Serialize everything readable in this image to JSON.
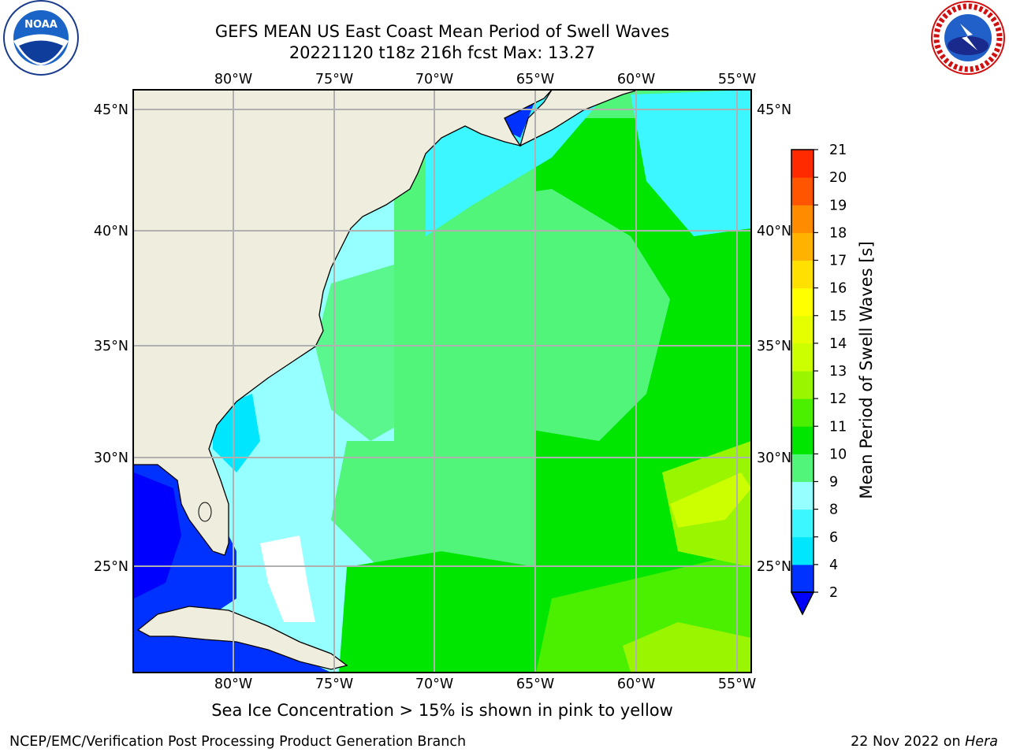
{
  "title": {
    "line1": "GEFS MEAN US East Coast Mean Period of Swell Waves",
    "line2": "20221120 t18z 216h fcst   Max: 13.27"
  },
  "map": {
    "lon_labels": [
      "80°W",
      "75°W",
      "70°W",
      "65°W",
      "60°W",
      "55°W"
    ],
    "lat_labels": [
      "45°N",
      "40°N",
      "35°N",
      "30°N",
      "25°N"
    ],
    "colors": {
      "land": "#efedde",
      "grid": "#b0b0b0",
      "ice_free_white": "#ffffff"
    }
  },
  "colorbar": {
    "label": "Mean Period of Swell Waves [s]",
    "ticks": [
      "2",
      "4",
      "6",
      "8",
      "9",
      "10",
      "11",
      "12",
      "13",
      "14",
      "15",
      "16",
      "17",
      "18",
      "19",
      "20",
      "21"
    ],
    "colors": [
      "#0032ff",
      "#00e6ff",
      "#3cf7ff",
      "#96ffff",
      "#50f57a",
      "#00e600",
      "#4bef00",
      "#9af500",
      "#ccff00",
      "#e6ff00",
      "#ffff00",
      "#ffe000",
      "#ffb300",
      "#ff8c00",
      "#ff5500",
      "#ff2a00",
      "#ff0000"
    ],
    "under_color": "#0000ff"
  },
  "footer": {
    "note": "Sea Ice Concentration > 15% is shown in pink to yellow",
    "credit": "NCEP/EMC/Verification Post Processing Product Generation Branch",
    "date": "22 Nov 2022 on ",
    "host": "Hera"
  }
}
